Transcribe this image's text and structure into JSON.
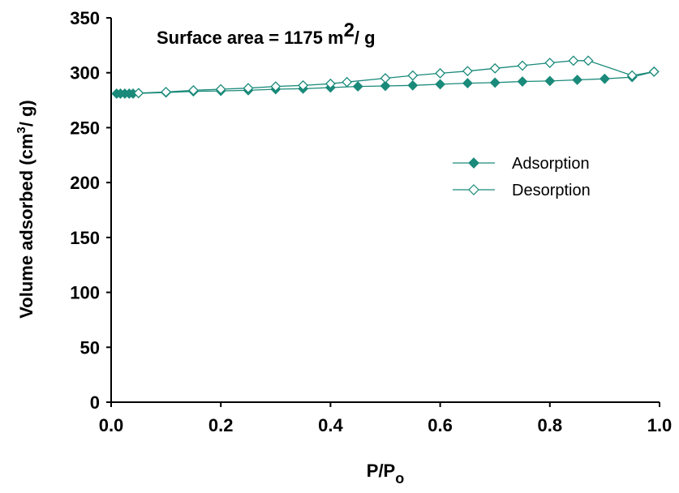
{
  "chart_data": {
    "type": "line",
    "annotation": {
      "text": "Surface area = 1175 m",
      "sup": "2",
      "suffix": "/ g"
    },
    "xlabel": {
      "main": "P/P",
      "sub": "o"
    },
    "ylabel": {
      "main": "Volume adsorbed (cm",
      "sup": "3",
      "suffix": "/ g)"
    },
    "xlim": [
      0.0,
      1.0
    ],
    "ylim": [
      0,
      350
    ],
    "xticks": [
      "0.0",
      "0.2",
      "0.4",
      "0.6",
      "0.8",
      "1.0"
    ],
    "yticks": [
      "0",
      "50",
      "100",
      "150",
      "200",
      "250",
      "300",
      "350"
    ],
    "grid": false,
    "legend_position": "right-middle",
    "color": "#1a8a7a",
    "series": [
      {
        "name": "Adsorption",
        "marker": "filled-diamond",
        "points": [
          [
            0.01,
            281
          ],
          [
            0.017,
            281
          ],
          [
            0.025,
            281
          ],
          [
            0.033,
            281
          ],
          [
            0.04,
            281
          ],
          [
            0.1,
            282
          ],
          [
            0.15,
            283
          ],
          [
            0.2,
            283.5
          ],
          [
            0.25,
            284
          ],
          [
            0.3,
            285
          ],
          [
            0.35,
            285.5
          ],
          [
            0.4,
            286.5
          ],
          [
            0.45,
            287.5
          ],
          [
            0.5,
            288
          ],
          [
            0.55,
            288.5
          ],
          [
            0.6,
            289.5
          ],
          [
            0.65,
            290.5
          ],
          [
            0.7,
            291
          ],
          [
            0.75,
            292
          ],
          [
            0.8,
            292.5
          ],
          [
            0.85,
            293.5
          ],
          [
            0.9,
            294.5
          ],
          [
            0.95,
            296
          ],
          [
            0.99,
            301
          ]
        ]
      },
      {
        "name": "Desorption",
        "marker": "open-diamond",
        "points": [
          [
            0.99,
            301
          ],
          [
            0.95,
            297.5
          ],
          [
            0.87,
            311
          ],
          [
            0.843,
            311
          ],
          [
            0.8,
            309
          ],
          [
            0.75,
            306.5
          ],
          [
            0.7,
            304
          ],
          [
            0.65,
            301.5
          ],
          [
            0.6,
            299.5
          ],
          [
            0.55,
            297.5
          ],
          [
            0.5,
            295
          ],
          [
            0.43,
            291.5
          ],
          [
            0.4,
            290
          ],
          [
            0.35,
            288.5
          ],
          [
            0.3,
            287.5
          ],
          [
            0.25,
            286
          ],
          [
            0.2,
            285
          ],
          [
            0.15,
            284
          ],
          [
            0.1,
            282.5
          ],
          [
            0.05,
            281.5
          ]
        ]
      }
    ]
  }
}
